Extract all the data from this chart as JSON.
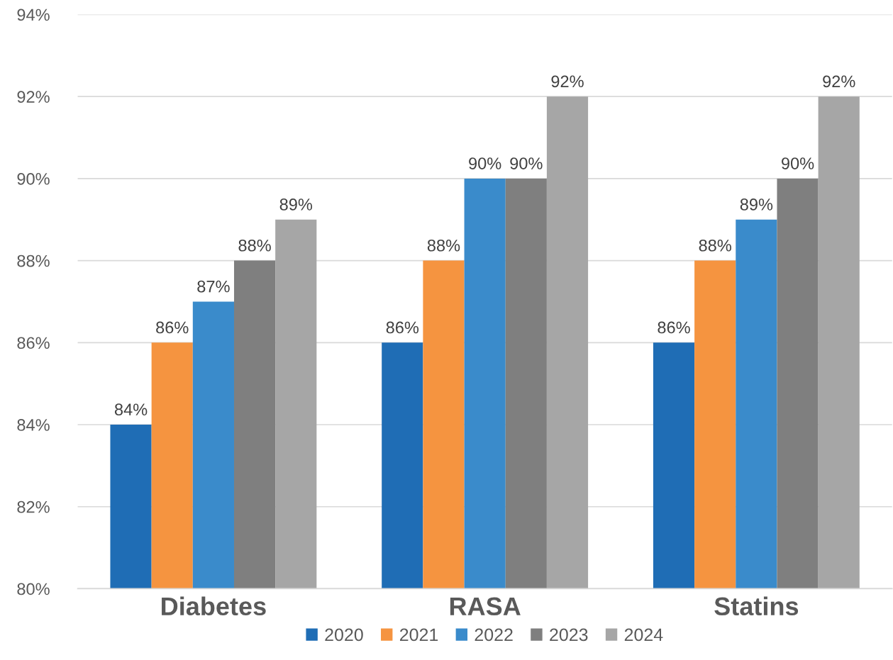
{
  "chart_data": {
    "type": "bar",
    "categories": [
      "Diabetes",
      "RASA",
      "Statins"
    ],
    "series": [
      {
        "name": "2020",
        "color": "#1f6db5",
        "values": [
          84,
          86,
          86
        ],
        "value_labels": [
          "84%",
          "86%",
          "86%"
        ]
      },
      {
        "name": "2021",
        "color": "#f59440",
        "values": [
          86,
          88,
          88
        ],
        "value_labels": [
          "86%",
          "88%",
          "88%"
        ]
      },
      {
        "name": "2022",
        "color": "#3a8bcb",
        "values": [
          87,
          90,
          89
        ],
        "value_labels": [
          "87%",
          "90%",
          "89%"
        ]
      },
      {
        "name": "2023",
        "color": "#7f7f7f",
        "values": [
          88,
          90,
          90
        ],
        "value_labels": [
          "88%",
          "90%",
          "90%"
        ]
      },
      {
        "name": "2024",
        "color": "#a6a6a6",
        "values": [
          89,
          92,
          92
        ],
        "value_labels": [
          "89%",
          "92%",
          "92%"
        ]
      }
    ],
    "ylim": [
      80,
      94
    ],
    "yticks": [
      {
        "value": 80,
        "label": "80%"
      },
      {
        "value": 82,
        "label": "82%"
      },
      {
        "value": 84,
        "label": "84%"
      },
      {
        "value": 86,
        "label": "86%"
      },
      {
        "value": 88,
        "label": "88%"
      },
      {
        "value": 90,
        "label": "90%"
      },
      {
        "value": 92,
        "label": "92%"
      },
      {
        "value": 94,
        "label": "94%"
      }
    ],
    "grid": "y",
    "legend": "bottom"
  }
}
